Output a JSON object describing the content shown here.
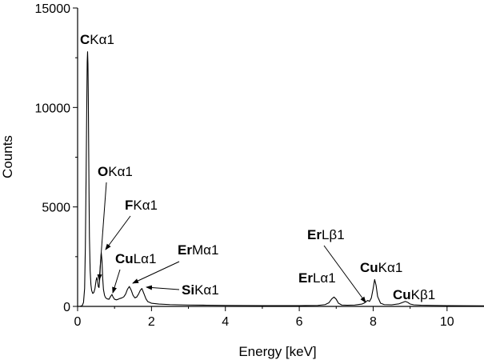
{
  "chart_data": {
    "type": "line",
    "title": "",
    "xlabel": "Energy [keV]",
    "ylabel": "Counts",
    "xlim": [
      0,
      11
    ],
    "ylim": [
      0,
      15000
    ],
    "x_ticks": [
      0,
      2,
      4,
      6,
      8,
      10
    ],
    "x_tick_labels": [
      "0",
      "2",
      "4",
      "6",
      "8",
      "10"
    ],
    "y_ticks": [
      0,
      5000,
      10000,
      15000
    ],
    "y_tick_labels": [
      "0",
      "5000",
      "10000",
      "15000"
    ],
    "grid": false,
    "legend": "none",
    "line_color": "#000000",
    "series": [
      {
        "x": [
          0.0,
          0.05,
          0.1,
          0.13,
          0.16,
          0.19,
          0.21,
          0.23,
          0.25,
          0.26,
          0.27,
          0.28,
          0.29,
          0.3,
          0.31,
          0.32,
          0.34,
          0.36,
          0.38,
          0.41,
          0.44,
          0.47,
          0.5,
          0.52,
          0.54,
          0.56,
          0.58,
          0.6,
          0.62,
          0.64,
          0.66,
          0.68,
          0.7,
          0.73,
          0.76,
          0.8,
          0.85,
          0.9,
          0.93,
          0.96,
          1.0,
          1.05,
          1.1,
          1.15,
          1.2,
          1.25,
          1.3,
          1.35,
          1.4,
          1.45,
          1.5,
          1.55,
          1.6,
          1.65,
          1.7,
          1.74,
          1.8,
          1.85,
          1.9,
          2.0,
          2.2,
          2.5,
          3.0,
          3.5,
          4.0,
          4.5,
          5.0,
          5.5,
          6.0,
          6.5,
          6.7,
          6.8,
          6.88,
          6.94,
          7.0,
          7.06,
          7.15,
          7.3,
          7.5,
          7.7,
          7.75,
          7.82,
          7.86,
          7.9,
          7.95,
          8.0,
          8.04,
          8.08,
          8.12,
          8.2,
          8.3,
          8.5,
          8.7,
          8.8,
          8.87,
          8.94,
          9.0,
          9.1,
          9.3,
          9.6,
          10.0,
          10.5,
          11.0
        ],
        "y": [
          0,
          0,
          20,
          60,
          200,
          900,
          3000,
          6500,
          10500,
          12300,
          12800,
          12200,
          10500,
          8000,
          5500,
          3500,
          1800,
          1100,
          800,
          650,
          700,
          900,
          1300,
          1450,
          1300,
          1000,
          950,
          1400,
          2200,
          2700,
          2300,
          1400,
          850,
          550,
          430,
          380,
          360,
          520,
          600,
          470,
          360,
          330,
          360,
          400,
          430,
          480,
          620,
          860,
          1000,
          820,
          560,
          430,
          470,
          620,
          820,
          900,
          620,
          380,
          240,
          160,
          120,
          90,
          70,
          60,
          50,
          45,
          40,
          40,
          40,
          50,
          90,
          180,
          380,
          470,
          360,
          160,
          70,
          60,
          70,
          120,
          160,
          260,
          300,
          250,
          420,
          900,
          1350,
          1050,
          500,
          160,
          90,
          80,
          130,
          200,
          250,
          200,
          120,
          80,
          60,
          50,
          40,
          35,
          30
        ]
      }
    ],
    "annotations": [
      {
        "element": "C",
        "line": "Kα1",
        "x": 0.28,
        "y": 12800
      },
      {
        "element": "O",
        "line": "Kα1",
        "x": 0.52,
        "y": 1450
      },
      {
        "element": "F",
        "line": "Kα1",
        "x": 0.64,
        "y": 2700
      },
      {
        "element": "Cu",
        "line": "Lα1",
        "x": 0.93,
        "y": 600
      },
      {
        "element": "Er",
        "line": "Mα1",
        "x": 1.4,
        "y": 1000
      },
      {
        "element": "Si",
        "line": "Kα1",
        "x": 1.74,
        "y": 900
      },
      {
        "element": "Er",
        "line": "Lα1",
        "x": 6.94,
        "y": 470
      },
      {
        "element": "Er",
        "line": "Lβ1",
        "x": 7.86,
        "y": 300
      },
      {
        "element": "Cu",
        "line": "Kα1",
        "x": 8.04,
        "y": 1350
      },
      {
        "element": "Cu",
        "line": "Kβ1",
        "x": 8.87,
        "y": 250
      }
    ]
  }
}
